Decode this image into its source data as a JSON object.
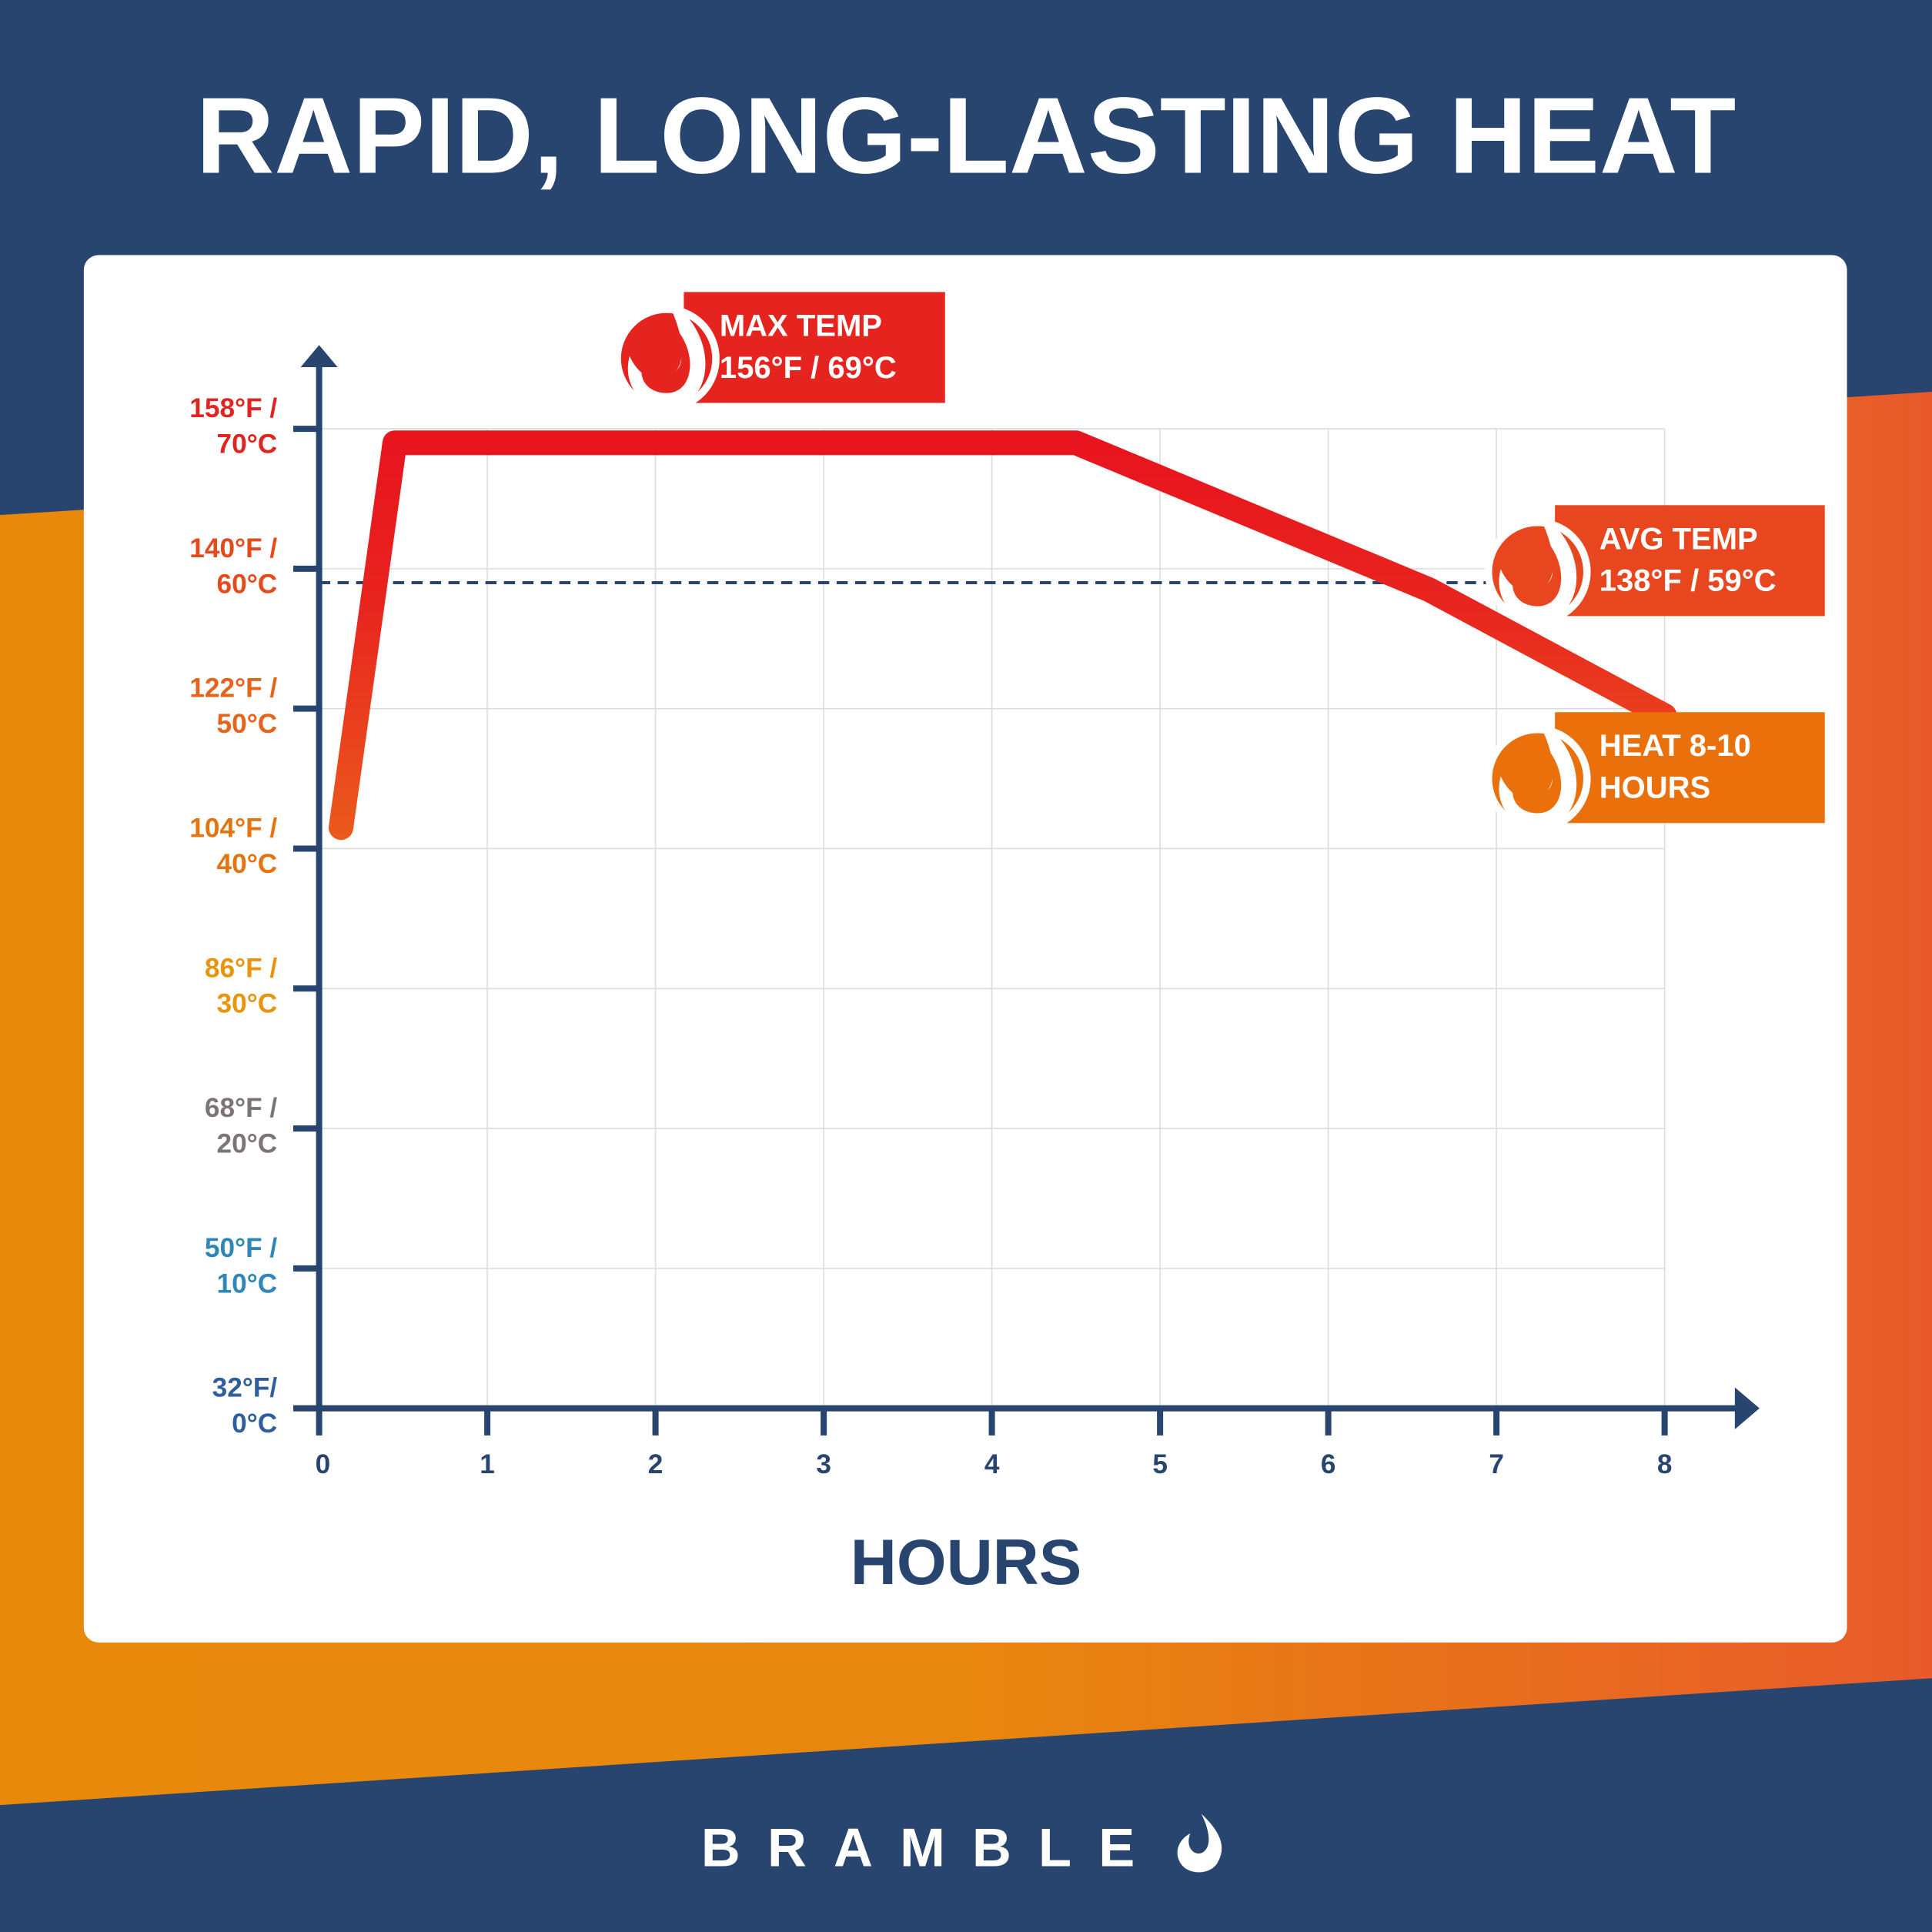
{
  "chart_data": {
    "type": "line",
    "title": "RAPID, LONG-LASTING HEAT",
    "x_label": "HOURS",
    "x": [
      0.13,
      0.45,
      4.5,
      6.6,
      8
    ],
    "series": [
      {
        "color": "#e8241f",
        "values": [
          41.5,
          69,
          69,
          58.5,
          49.5
        ]
      }
    ],
    "xlim": [
      0,
      8
    ],
    "xticks": [
      0,
      1,
      2,
      3,
      4,
      5,
      6,
      7,
      8
    ],
    "ylim": [
      0,
      70
    ],
    "yticks": [
      {
        "value": 0,
        "label": "32°F/ 0°C"
      },
      {
        "value": 10,
        "label": "50°F / 10°C"
      },
      {
        "value": 20,
        "label": "68°F / 20°C"
      },
      {
        "value": 30,
        "label": "86°F / 30°C"
      },
      {
        "value": 40,
        "label": "104°F / 40°C"
      },
      {
        "value": 50,
        "label": "122°F / 50°C"
      },
      {
        "value": 60,
        "label": "140°F / 60°C"
      },
      {
        "value": 70,
        "label": "158°F / 70°C"
      }
    ],
    "ytick_colors": [
      "#2e5f9c",
      "#2e87b8",
      "#7d7478",
      "#e8940c",
      "#e5730f",
      "#e8621a",
      "#e54a1c",
      "#e0241f"
    ],
    "grid": true,
    "avg_line": 59,
    "annotations": [
      {
        "lines": [
          "MAX TEMP",
          "156°F / 69°C"
        ],
        "color": "#e52420"
      },
      {
        "lines": [
          "AVG TEMP",
          "138°F / 59°C"
        ],
        "color": "#e8461e"
      },
      {
        "lines": [
          "HEAT 8-10",
          "HOURS"
        ],
        "color": "#ea700c"
      }
    ],
    "brand": "BRAMBLE"
  }
}
